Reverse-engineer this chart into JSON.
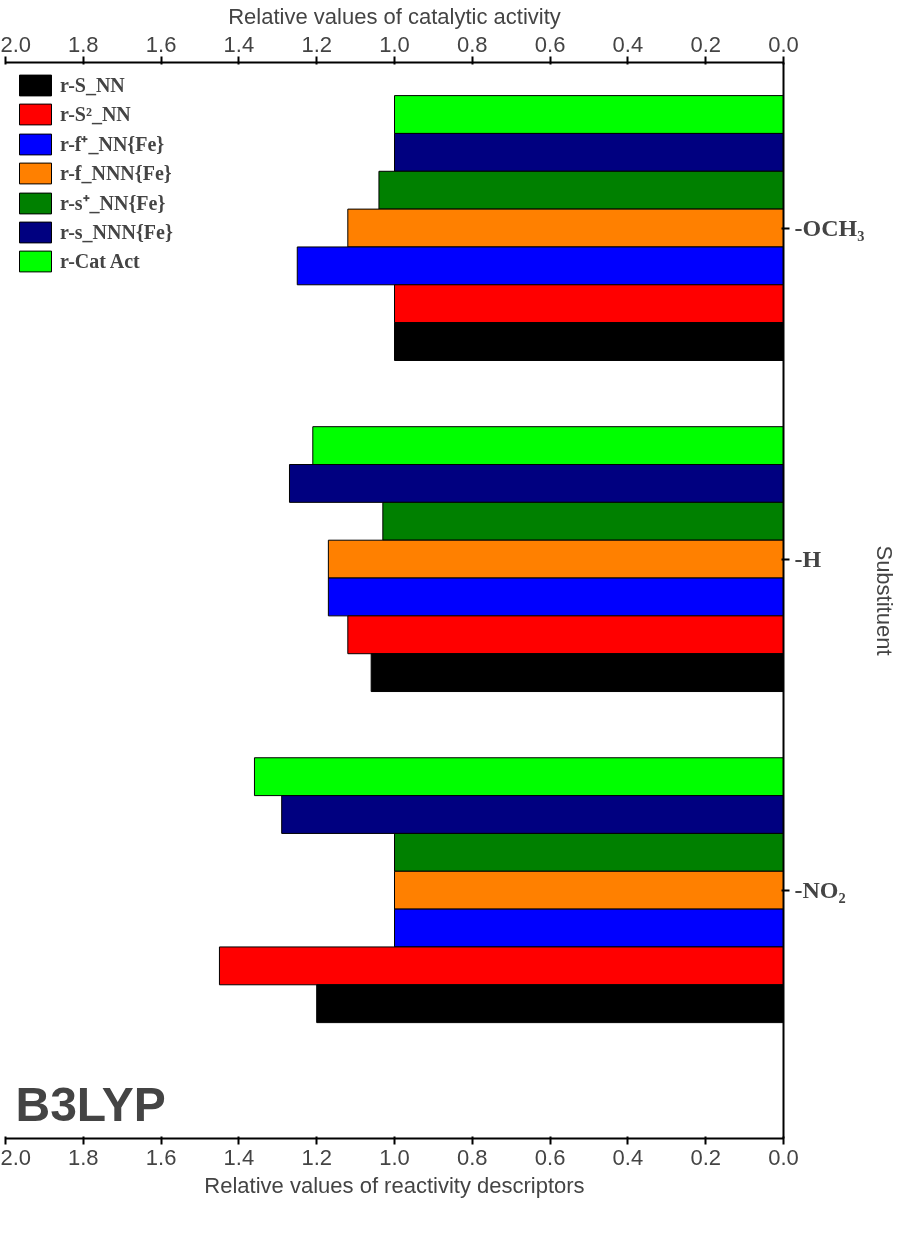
{
  "chart_data": {
    "type": "bar",
    "orientation": "horizontal",
    "xlabel": "Relative values of reactivity descriptors",
    "x2label": "Relative values of catalytic activity",
    "ylabel": "Substituent",
    "categories": [
      "-OCH₃",
      "-H",
      "-NO₂"
    ],
    "xlim": [
      2.0,
      0.0
    ],
    "xticks": [
      {
        "value": 2.0,
        "label": "2.0"
      },
      1.8,
      1.6,
      1.4,
      1.2,
      {
        "value": 1.0,
        "label": "1.0"
      },
      0.8,
      0.6,
      0.4,
      0.2,
      {
        "value": 0.0,
        "label": "0.0"
      }
    ],
    "x2lim": [
      2.0,
      0.0
    ],
    "x2ticks": [
      {
        "value": 2.0,
        "label": "2.0"
      },
      1.8,
      1.6,
      1.4,
      1.2,
      {
        "value": 1.0,
        "label": "1.0"
      },
      0.8,
      0.6,
      0.4,
      0.2,
      {
        "value": 0.0,
        "label": "0.0"
      }
    ],
    "series": [
      {
        "name": "r-Cat Act",
        "color": "#00ff00",
        "values": [
          1.0,
          1.21,
          1.36
        ]
      },
      {
        "name": "r-s_NNN{Fe}",
        "color": "#000080",
        "values": [
          1.0,
          1.27,
          1.29
        ]
      },
      {
        "name": "r-s⁺_NN{Fe}",
        "color": "#008000",
        "values": [
          1.04,
          1.03,
          1.0
        ]
      },
      {
        "name": "r-f_NNN{Fe}",
        "color": "#ff8000",
        "values": [
          1.12,
          1.17,
          1.0
        ]
      },
      {
        "name": "r-f⁺_NN{Fe}",
        "color": "#0000ff",
        "values": [
          1.25,
          1.17,
          1.0
        ]
      },
      {
        "name": "r-S²_NN",
        "color": "#ff0000",
        "values": [
          1.0,
          1.12,
          1.45
        ]
      },
      {
        "name": "r-S_NN",
        "color": "#000000",
        "values": [
          1.0,
          1.06,
          1.2
        ]
      }
    ],
    "annotations": [
      "B3LYP"
    ],
    "grid": false,
    "legend": "top left"
  }
}
